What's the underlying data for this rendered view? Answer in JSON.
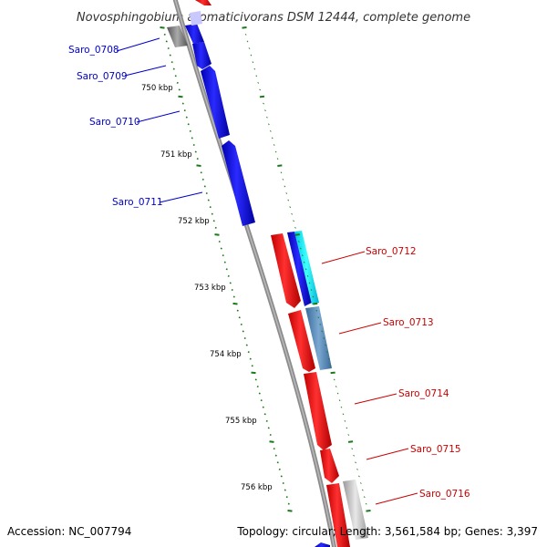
{
  "title": "Novosphingobium aromaticivorans DSM 12444, complete genome",
  "footer": {
    "accession": "Accession: NC_007794",
    "summary": "Topology: circular; Length: 3,561,584 bp; Genes: 3,397"
  },
  "colors": {
    "backbone": "#8c8c8c",
    "forward_gene": "#0000ee",
    "reverse_gene": "#ee0000",
    "tick": "#1a7a1a",
    "forward_label": "#0000cc",
    "reverse_label": "#cc0000"
  },
  "kbp_labels": [
    "750 kbp",
    "751 kbp",
    "752 kbp",
    "753 kbp",
    "754 kbp",
    "755 kbp",
    "756 kbp"
  ],
  "genes_left": [
    "Saro_0708",
    "Saro_0709",
    "Saro_0710",
    "Saro_0711"
  ],
  "genes_right": [
    "Saro_0712",
    "Saro_0713",
    "Saro_0714",
    "Saro_0715",
    "Saro_0716"
  ]
}
